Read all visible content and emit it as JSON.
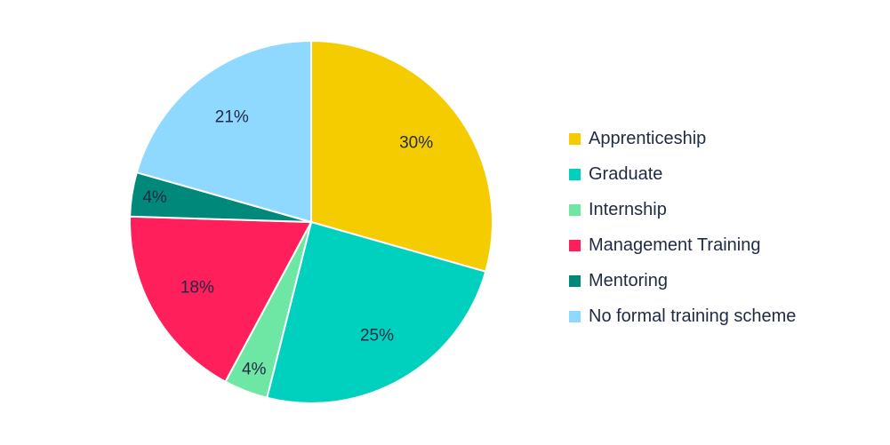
{
  "chart_data": {
    "type": "pie",
    "categories": [
      "Apprenticeship",
      "Graduate",
      "Internship",
      "Management Training",
      "Mentoring",
      "No formal training scheme"
    ],
    "values": [
      30,
      25,
      4,
      18,
      4,
      21
    ],
    "value_labels": [
      "30%",
      "25%",
      "4%",
      "18%",
      "4%",
      "21%"
    ],
    "colors": [
      "#F5CC00",
      "#00D1BE",
      "#6EE7A5",
      "#FF1F5A",
      "#00897B",
      "#8FD8FF"
    ],
    "start_angle_deg": 0,
    "direction": "clockwise",
    "legend_position": "right"
  }
}
